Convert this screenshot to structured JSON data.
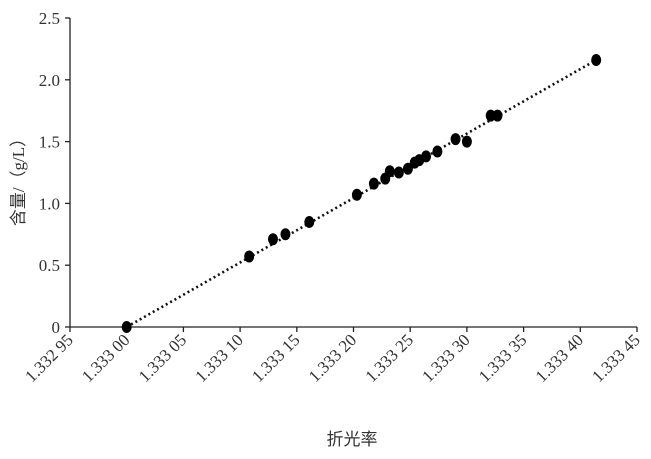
{
  "chart_data": {
    "type": "scatter",
    "xlabel": "折光率",
    "ylabel": "含量/（g/L）",
    "x": [
      1.333,
      1.333108,
      1.333129,
      1.33314,
      1.333161,
      1.333203,
      1.333218,
      1.333228,
      1.333232,
      1.33324,
      1.333248,
      1.333254,
      1.333258,
      1.333264,
      1.333274,
      1.33329,
      1.3333,
      1.333321,
      1.333327,
      1.333414
    ],
    "values": [
      0,
      0.57,
      0.71,
      0.75,
      0.85,
      1.07,
      1.16,
      1.2,
      1.26,
      1.25,
      1.28,
      1.33,
      1.35,
      1.38,
      1.42,
      1.52,
      1.5,
      1.71,
      1.71,
      2.16
    ],
    "color": "#000000",
    "trend_line": {
      "x": [
        1.333,
        1.333414
      ],
      "y": [
        0,
        2.16
      ]
    },
    "xlim": [
      1.33295,
      1.33345
    ],
    "xticks": [
      {
        "value": 1.33295,
        "label": "1.332 95"
      },
      {
        "value": 1.333,
        "label": "1.333 00"
      },
      {
        "value": 1.33305,
        "label": "1.333 05"
      },
      {
        "value": 1.3331,
        "label": "1.333 10"
      },
      {
        "value": 1.33315,
        "label": "1.333 15"
      },
      {
        "value": 1.3332,
        "label": "1.333 20"
      },
      {
        "value": 1.33325,
        "label": "1.333 25"
      },
      {
        "value": 1.3333,
        "label": "1.333 30"
      },
      {
        "value": 1.33335,
        "label": "1.333 35"
      },
      {
        "value": 1.3334,
        "label": "1.333 40"
      },
      {
        "value": 1.33345,
        "label": "1.333 45"
      }
    ],
    "ylim": [
      0,
      2.5
    ],
    "yticks": [
      0,
      {
        "value": 0.5,
        "label": "0.5"
      },
      {
        "value": 1,
        "label": "1.0"
      },
      {
        "value": 1.5,
        "label": "1.5"
      },
      {
        "value": 2,
        "label": "2.0"
      },
      {
        "value": 2.5,
        "label": "2.5"
      }
    ]
  }
}
